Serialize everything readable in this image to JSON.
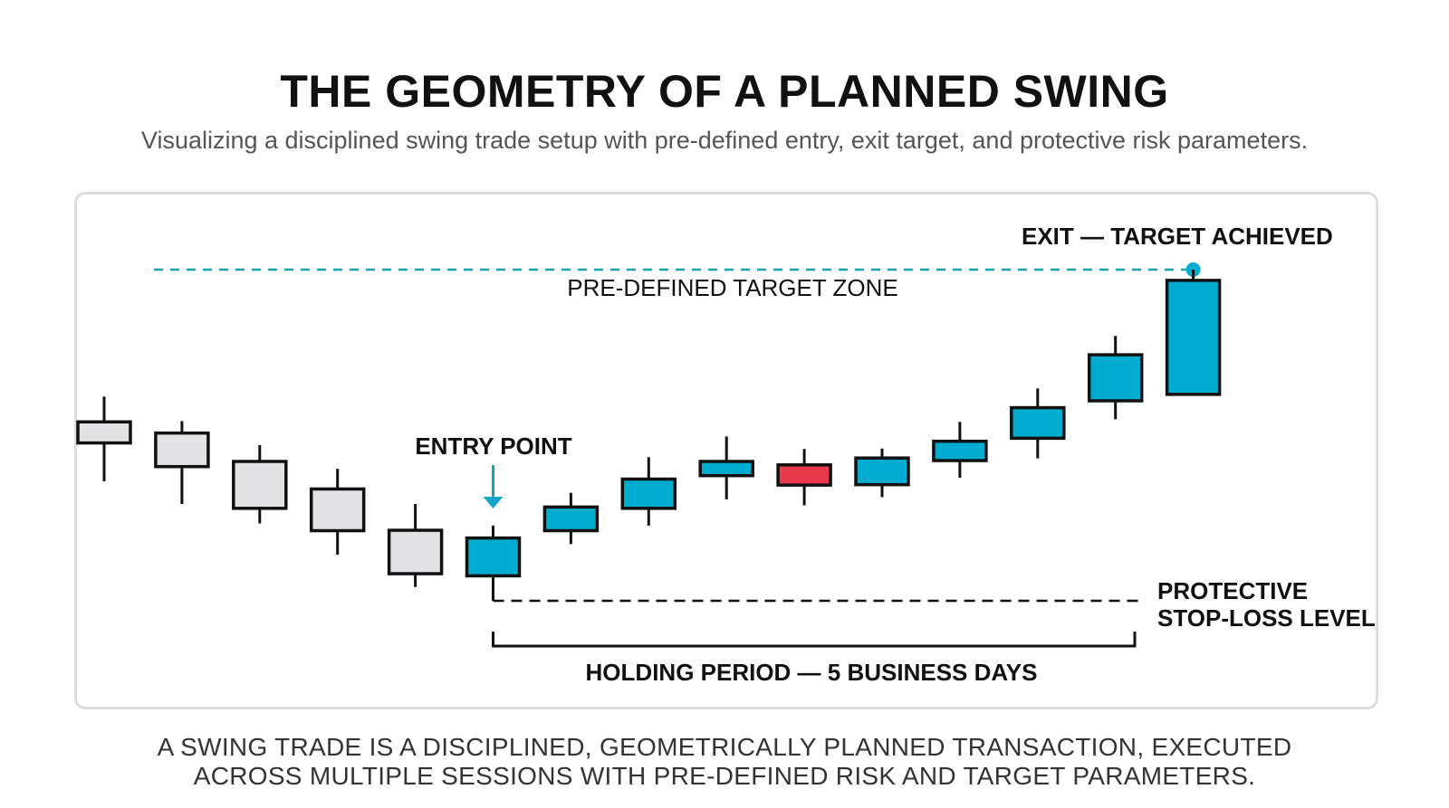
{
  "header": {
    "title": "THE GEOMETRY OF A PLANNED SWING",
    "subtitle": "Visualizing a disciplined swing trade setup with pre-defined entry, exit target, and protective risk parameters."
  },
  "labels": {
    "exit": "EXIT — TARGET ACHIEVED",
    "target_zone": "PRE-DEFINED TARGET ZONE",
    "entry": "ENTRY POINT",
    "stop_line1": "PROTECTIVE",
    "stop_line2": "STOP-LOSS LEVEL",
    "holding": "HOLDING PERIOD — 5 BUSINESS DAYS"
  },
  "footer": {
    "line1": "A SWING TRADE IS A DISCIPLINED, GEOMETRICALLY PLANNED TRANSACTION, EXECUTED",
    "line2": "ACROSS MULTIPLE SESSIONS WITH PRE-DEFINED RISK AND TARGET PARAMETERS."
  },
  "colors": {
    "pre_entry": "#e2e2e4",
    "up": "#00acd0",
    "down": "#e8394d",
    "outline": "#111111",
    "target_line": "#1aa3ac",
    "stop_line": "#111111",
    "entry_arrow": "#12a3c6"
  },
  "chart_data": {
    "type": "candlestick",
    "candles": [
      {
        "phase": "pre",
        "open": 64.6,
        "close": 59.7,
        "high": 70.5,
        "low": 50.8
      },
      {
        "phase": "pre",
        "open": 62.0,
        "close": 54.2,
        "high": 64.8,
        "low": 45.5
      },
      {
        "phase": "pre",
        "open": 55.4,
        "close": 44.5,
        "high": 59.2,
        "low": 41.0
      },
      {
        "phase": "pre",
        "open": 49.0,
        "close": 39.3,
        "high": 53.7,
        "low": 33.7
      },
      {
        "phase": "pre",
        "open": 39.4,
        "close": 29.3,
        "high": 45.5,
        "low": 26.2
      },
      {
        "phase": "entry",
        "open": 28.8,
        "close": 37.6,
        "high": 40.5,
        "low": 23.0
      },
      {
        "phase": "up",
        "open": 39.3,
        "close": 44.8,
        "high": 48.1,
        "low": 36.2
      },
      {
        "phase": "up",
        "open": 44.5,
        "close": 51.3,
        "high": 56.4,
        "low": 40.5
      },
      {
        "phase": "up",
        "open": 52.1,
        "close": 55.4,
        "high": 61.2,
        "low": 46.6
      },
      {
        "phase": "down",
        "open": 54.6,
        "close": 49.9,
        "high": 58.3,
        "low": 45.2
      },
      {
        "phase": "up",
        "open": 50.0,
        "close": 56.2,
        "high": 58.4,
        "low": 47.1
      },
      {
        "phase": "up",
        "open": 55.6,
        "close": 60.1,
        "high": 64.6,
        "low": 51.6
      },
      {
        "phase": "up",
        "open": 60.8,
        "close": 67.9,
        "high": 72.4,
        "low": 56.1
      },
      {
        "phase": "up",
        "open": 69.5,
        "close": 80.2,
        "high": 84.6,
        "low": 65.2
      },
      {
        "phase": "up",
        "open": 71.0,
        "close": 97.5,
        "high": 100.0,
        "low": 71.0
      }
    ],
    "target_level": 100.0,
    "stop_level": 23.0,
    "entry_index": 5,
    "exit_index": 14
  }
}
